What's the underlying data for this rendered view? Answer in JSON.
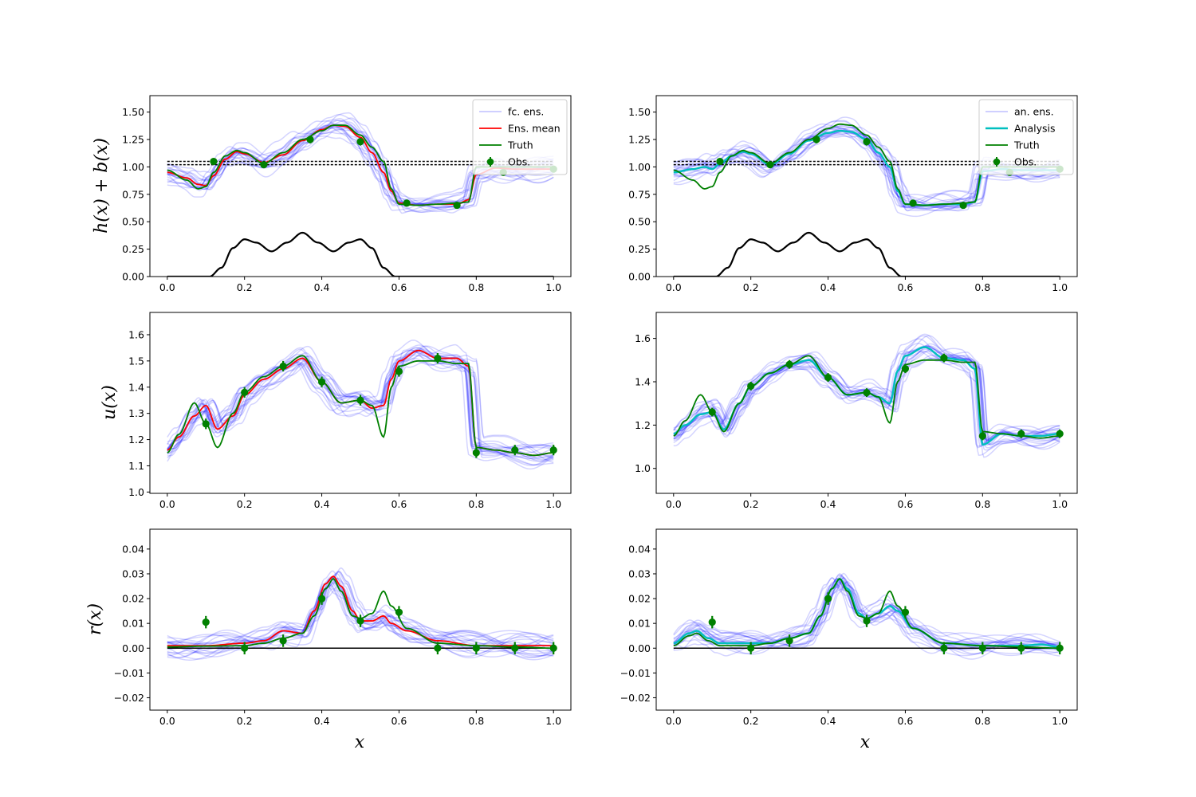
{
  "figure": {
    "row_labels": [
      "h(x) + b(x)",
      "u(x)",
      "r(x)"
    ],
    "x_label": "x"
  },
  "colors": {
    "ensemble": "#0000ff",
    "ens_mean": "#ff0000",
    "analysis": "#00bfbf",
    "truth": "#008000",
    "obs": "#008000",
    "bed": "#000000"
  },
  "chart_data": [
    {
      "type": "line",
      "panel": "top-left",
      "ylabel": "h(x) + b(x)",
      "xlabel": "",
      "xlim": [
        -0.045,
        1.045
      ],
      "ylim": [
        0.0,
        1.65
      ],
      "xticks": [
        0.0,
        0.2,
        0.4,
        0.6,
        0.8,
        1.0
      ],
      "yticks": [
        0.0,
        0.25,
        0.5,
        0.75,
        1.0,
        1.25,
        1.5
      ],
      "legend": {
        "position": "top-right",
        "labels": [
          "fc. ens.",
          "Ens. mean",
          "Truth",
          "Obs."
        ]
      },
      "truth_x": [
        0,
        0.05,
        0.08,
        0.1,
        0.12,
        0.15,
        0.18,
        0.2,
        0.25,
        0.3,
        0.35,
        0.4,
        0.43,
        0.46,
        0.5,
        0.53,
        0.56,
        0.58,
        0.6,
        0.65,
        0.7,
        0.75,
        0.78,
        0.8,
        0.85,
        0.9,
        0.95,
        1.0
      ],
      "truth_y": [
        0.97,
        0.88,
        0.8,
        0.82,
        0.95,
        1.1,
        1.15,
        1.13,
        1.03,
        1.13,
        1.25,
        1.33,
        1.38,
        1.38,
        1.29,
        1.18,
        1.05,
        0.8,
        0.66,
        0.65,
        0.66,
        0.67,
        0.68,
        1.0,
        1.0,
        1.0,
        1.0,
        1.0
      ],
      "mean_x": [
        0,
        0.05,
        0.08,
        0.1,
        0.12,
        0.15,
        0.18,
        0.2,
        0.25,
        0.3,
        0.35,
        0.4,
        0.43,
        0.46,
        0.5,
        0.53,
        0.56,
        0.58,
        0.6,
        0.65,
        0.7,
        0.75,
        0.78,
        0.8,
        0.85,
        0.9,
        0.95,
        1.0
      ],
      "mean_y": [
        0.95,
        0.9,
        0.84,
        0.83,
        0.92,
        1.07,
        1.14,
        1.12,
        1.04,
        1.11,
        1.24,
        1.34,
        1.38,
        1.37,
        1.27,
        1.13,
        0.95,
        0.78,
        0.67,
        0.65,
        0.66,
        0.66,
        0.7,
        0.93,
        0.99,
        0.98,
        0.98,
        0.98
      ],
      "obs": {
        "x": [
          0.12,
          0.25,
          0.37,
          0.5,
          0.62,
          0.75,
          0.87,
          1.0
        ],
        "y": [
          1.05,
          1.02,
          1.25,
          1.23,
          0.67,
          0.65,
          0.95,
          0.98
        ],
        "err": [
          0.03,
          0.03,
          0.035,
          0.035,
          0.03,
          0.03,
          0.03,
          0.03
        ]
      },
      "hlines": [
        1.02,
        1.05
      ],
      "bed": {
        "x": [
          0.11,
          0.14,
          0.17,
          0.2,
          0.23,
          0.27,
          0.31,
          0.35,
          0.39,
          0.43,
          0.47,
          0.5,
          0.53,
          0.56,
          0.59
        ],
        "y": [
          0.0,
          0.08,
          0.26,
          0.34,
          0.31,
          0.23,
          0.31,
          0.4,
          0.31,
          0.23,
          0.31,
          0.34,
          0.26,
          0.08,
          0.0
        ]
      }
    },
    {
      "type": "line",
      "panel": "top-right",
      "ylabel": "",
      "xlabel": "",
      "xlim": [
        -0.045,
        1.045
      ],
      "ylim": [
        0.0,
        1.65
      ],
      "xticks": [
        0.0,
        0.2,
        0.4,
        0.6,
        0.8,
        1.0
      ],
      "yticks": [
        0.0,
        0.25,
        0.5,
        0.75,
        1.0,
        1.25,
        1.5
      ],
      "legend": {
        "position": "top-right",
        "labels": [
          "an. ens.",
          "Analysis",
          "Truth",
          "Obs."
        ]
      },
      "truth_x": [
        0,
        0.05,
        0.08,
        0.1,
        0.12,
        0.15,
        0.18,
        0.2,
        0.25,
        0.3,
        0.35,
        0.4,
        0.43,
        0.46,
        0.5,
        0.53,
        0.56,
        0.58,
        0.6,
        0.65,
        0.7,
        0.75,
        0.78,
        0.8,
        0.85,
        0.9,
        0.95,
        1.0
      ],
      "truth_y": [
        0.97,
        0.88,
        0.8,
        0.82,
        0.95,
        1.1,
        1.15,
        1.13,
        1.03,
        1.13,
        1.25,
        1.35,
        1.39,
        1.38,
        1.29,
        1.18,
        1.05,
        0.8,
        0.66,
        0.65,
        0.66,
        0.67,
        0.68,
        1.0,
        1.0,
        1.0,
        1.0,
        1.0
      ],
      "mean_x": [
        0,
        0.05,
        0.08,
        0.1,
        0.12,
        0.15,
        0.18,
        0.2,
        0.25,
        0.3,
        0.35,
        0.4,
        0.43,
        0.46,
        0.5,
        0.53,
        0.56,
        0.58,
        0.6,
        0.65,
        0.7,
        0.75,
        0.78,
        0.8,
        0.85,
        0.9,
        0.95,
        1.0
      ],
      "mean_y": [
        0.95,
        0.98,
        1.0,
        0.98,
        1.03,
        1.1,
        1.14,
        1.12,
        1.02,
        1.12,
        1.24,
        1.31,
        1.33,
        1.32,
        1.25,
        1.13,
        1.0,
        0.78,
        0.66,
        0.65,
        0.66,
        0.66,
        0.68,
        0.96,
        0.98,
        0.97,
        0.97,
        0.97
      ],
      "obs": {
        "x": [
          0.12,
          0.25,
          0.37,
          0.5,
          0.62,
          0.75,
          0.87,
          1.0
        ],
        "y": [
          1.05,
          1.02,
          1.25,
          1.23,
          0.67,
          0.65,
          0.95,
          0.98
        ],
        "err": [
          0.03,
          0.03,
          0.035,
          0.035,
          0.03,
          0.03,
          0.03,
          0.03
        ]
      },
      "hlines": [
        1.02,
        1.05
      ],
      "bed": {
        "x": [
          0.11,
          0.14,
          0.17,
          0.2,
          0.23,
          0.27,
          0.31,
          0.35,
          0.39,
          0.43,
          0.47,
          0.5,
          0.53,
          0.56,
          0.59
        ],
        "y": [
          0.0,
          0.08,
          0.26,
          0.34,
          0.31,
          0.23,
          0.31,
          0.4,
          0.31,
          0.23,
          0.31,
          0.34,
          0.26,
          0.08,
          0.0
        ]
      }
    },
    {
      "type": "line",
      "panel": "middle-left",
      "ylabel": "u(x)",
      "xlabel": "",
      "xlim": [
        -0.045,
        1.045
      ],
      "ylim": [
        0.995,
        1.685
      ],
      "xticks": [
        0.0,
        0.2,
        0.4,
        0.6,
        0.8,
        1.0
      ],
      "yticks": [
        1.0,
        1.1,
        1.2,
        1.3,
        1.4,
        1.5,
        1.6
      ],
      "truth_x": [
        0,
        0.03,
        0.07,
        0.1,
        0.13,
        0.17,
        0.2,
        0.25,
        0.3,
        0.35,
        0.4,
        0.45,
        0.5,
        0.53,
        0.56,
        0.58,
        0.6,
        0.65,
        0.7,
        0.75,
        0.78,
        0.8,
        0.85,
        0.9,
        0.95,
        1.0
      ],
      "truth_y": [
        1.15,
        1.22,
        1.34,
        1.26,
        1.17,
        1.3,
        1.38,
        1.44,
        1.48,
        1.52,
        1.42,
        1.34,
        1.35,
        1.33,
        1.21,
        1.4,
        1.48,
        1.5,
        1.5,
        1.49,
        1.49,
        1.17,
        1.16,
        1.15,
        1.14,
        1.15
      ],
      "mean_x": [
        0,
        0.03,
        0.07,
        0.1,
        0.13,
        0.17,
        0.2,
        0.25,
        0.3,
        0.35,
        0.4,
        0.45,
        0.5,
        0.53,
        0.56,
        0.58,
        0.6,
        0.65,
        0.7,
        0.75,
        0.78,
        0.8,
        0.85,
        0.9,
        0.95,
        1.0
      ],
      "mean_y": [
        1.16,
        1.21,
        1.29,
        1.33,
        1.24,
        1.29,
        1.37,
        1.43,
        1.47,
        1.51,
        1.42,
        1.34,
        1.35,
        1.32,
        1.33,
        1.43,
        1.5,
        1.54,
        1.51,
        1.51,
        1.48,
        1.17,
        1.16,
        1.15,
        1.14,
        1.15
      ],
      "obs": {
        "x": [
          0.1,
          0.2,
          0.3,
          0.4,
          0.5,
          0.6,
          0.7,
          0.8,
          0.9,
          1.0
        ],
        "y": [
          1.26,
          1.38,
          1.48,
          1.42,
          1.35,
          1.46,
          1.51,
          1.15,
          1.16,
          1.16
        ],
        "err": [
          0.02,
          0.02,
          0.02,
          0.02,
          0.02,
          0.02,
          0.02,
          0.02,
          0.02,
          0.02
        ]
      }
    },
    {
      "type": "line",
      "panel": "middle-right",
      "ylabel": "",
      "xlabel": "",
      "xlim": [
        -0.045,
        1.045
      ],
      "ylim": [
        0.885,
        1.72
      ],
      "xticks": [
        0.0,
        0.2,
        0.4,
        0.6,
        0.8,
        1.0
      ],
      "yticks": [
        1.0,
        1.2,
        1.4,
        1.6
      ],
      "truth_x": [
        0,
        0.03,
        0.07,
        0.1,
        0.13,
        0.17,
        0.2,
        0.25,
        0.3,
        0.35,
        0.4,
        0.45,
        0.5,
        0.53,
        0.56,
        0.58,
        0.6,
        0.65,
        0.7,
        0.75,
        0.78,
        0.8,
        0.85,
        0.9,
        0.95,
        1.0
      ],
      "truth_y": [
        1.15,
        1.22,
        1.34,
        1.26,
        1.17,
        1.3,
        1.38,
        1.44,
        1.48,
        1.52,
        1.42,
        1.34,
        1.35,
        1.33,
        1.21,
        1.4,
        1.48,
        1.5,
        1.5,
        1.49,
        1.49,
        1.17,
        1.16,
        1.15,
        1.14,
        1.15
      ],
      "mean_x": [
        0,
        0.03,
        0.07,
        0.1,
        0.13,
        0.17,
        0.2,
        0.25,
        0.3,
        0.35,
        0.4,
        0.45,
        0.5,
        0.53,
        0.56,
        0.58,
        0.6,
        0.65,
        0.7,
        0.75,
        0.78,
        0.8,
        0.85,
        0.9,
        0.95,
        1.0
      ],
      "mean_y": [
        1.16,
        1.2,
        1.25,
        1.26,
        1.18,
        1.3,
        1.38,
        1.44,
        1.48,
        1.5,
        1.42,
        1.34,
        1.35,
        1.33,
        1.3,
        1.45,
        1.52,
        1.56,
        1.51,
        1.5,
        1.46,
        1.11,
        1.16,
        1.15,
        1.15,
        1.16
      ],
      "obs": {
        "x": [
          0.1,
          0.2,
          0.3,
          0.4,
          0.5,
          0.6,
          0.7,
          0.8,
          0.9,
          1.0
        ],
        "y": [
          1.26,
          1.38,
          1.48,
          1.42,
          1.35,
          1.46,
          1.51,
          1.15,
          1.16,
          1.16
        ],
        "err": [
          0.02,
          0.02,
          0.02,
          0.02,
          0.02,
          0.02,
          0.02,
          0.02,
          0.02,
          0.02
        ]
      }
    },
    {
      "type": "line",
      "panel": "bottom-left",
      "ylabel": "r(x)",
      "xlabel": "x",
      "xlim": [
        -0.045,
        1.045
      ],
      "ylim": [
        -0.025,
        0.048
      ],
      "xticks": [
        0.0,
        0.2,
        0.4,
        0.6,
        0.8,
        1.0
      ],
      "yticks": [
        -0.02,
        -0.01,
        0.0,
        0.01,
        0.02,
        0.03,
        0.04
      ],
      "truth_x": [
        0,
        0.1,
        0.2,
        0.25,
        0.3,
        0.35,
        0.38,
        0.41,
        0.43,
        0.45,
        0.48,
        0.5,
        0.53,
        0.56,
        0.58,
        0.62,
        0.7,
        0.8,
        0.9,
        1.0
      ],
      "truth_y": [
        0.0005,
        0.0008,
        0.001,
        0.002,
        0.004,
        0.006,
        0.013,
        0.024,
        0.028,
        0.023,
        0.013,
        0.012,
        0.014,
        0.023,
        0.017,
        0.008,
        0.002,
        0.001,
        0.0005,
        0.0
      ],
      "mean_x": [
        0,
        0.1,
        0.2,
        0.25,
        0.3,
        0.35,
        0.38,
        0.41,
        0.43,
        0.45,
        0.48,
        0.5,
        0.53,
        0.56,
        0.58,
        0.62,
        0.7,
        0.8,
        0.9,
        1.0
      ],
      "mean_y": [
        0.001,
        0.001,
        0.002,
        0.003,
        0.007,
        0.006,
        0.015,
        0.026,
        0.029,
        0.025,
        0.015,
        0.011,
        0.011,
        0.013,
        0.01,
        0.007,
        0.003,
        0.001,
        0.001,
        0.001
      ],
      "obs": {
        "x": [
          0.1,
          0.2,
          0.3,
          0.4,
          0.5,
          0.6,
          0.7,
          0.8,
          0.9,
          1.0
        ],
        "y": [
          0.0105,
          0.0,
          0.003,
          0.02,
          0.011,
          0.0145,
          0.0,
          0.0,
          0.0,
          0.0
        ],
        "err": [
          0.0025,
          0.0025,
          0.0025,
          0.0025,
          0.0025,
          0.0025,
          0.0025,
          0.0025,
          0.0025,
          0.0025
        ]
      },
      "hlines": [
        0.0
      ]
    },
    {
      "type": "line",
      "panel": "bottom-right",
      "ylabel": "",
      "xlabel": "x",
      "xlim": [
        -0.045,
        1.045
      ],
      "ylim": [
        -0.025,
        0.048
      ],
      "xticks": [
        0.0,
        0.2,
        0.4,
        0.6,
        0.8,
        1.0
      ],
      "yticks": [
        -0.02,
        -0.01,
        0.0,
        0.01,
        0.02,
        0.03,
        0.04
      ],
      "truth_x": [
        0,
        0.04,
        0.06,
        0.09,
        0.12,
        0.2,
        0.25,
        0.3,
        0.35,
        0.38,
        0.41,
        0.43,
        0.45,
        0.48,
        0.5,
        0.53,
        0.56,
        0.58,
        0.62,
        0.7,
        0.8,
        0.9,
        1.0
      ],
      "truth_y": [
        0.001,
        0.005,
        0.006,
        0.003,
        0.001,
        0.001,
        0.002,
        0.004,
        0.006,
        0.013,
        0.024,
        0.028,
        0.023,
        0.013,
        0.012,
        0.014,
        0.023,
        0.017,
        0.008,
        0.002,
        0.001,
        0.0005,
        0.0
      ],
      "mean_x": [
        0,
        0.04,
        0.06,
        0.09,
        0.12,
        0.2,
        0.25,
        0.3,
        0.35,
        0.38,
        0.41,
        0.43,
        0.45,
        0.48,
        0.5,
        0.53,
        0.56,
        0.58,
        0.62,
        0.7,
        0.8,
        0.9,
        0.95,
        1.0
      ],
      "mean_y": [
        0.002,
        0.006,
        0.007,
        0.004,
        0.002,
        0.002,
        0.002,
        0.004,
        0.006,
        0.013,
        0.024,
        0.028,
        0.024,
        0.014,
        0.012,
        0.014,
        0.017,
        0.015,
        0.008,
        0.002,
        0.001,
        0.001,
        0.0015,
        0.0005
      ],
      "obs": {
        "x": [
          0.1,
          0.2,
          0.3,
          0.4,
          0.5,
          0.6,
          0.7,
          0.8,
          0.9,
          1.0
        ],
        "y": [
          0.0105,
          0.0,
          0.003,
          0.02,
          0.011,
          0.0145,
          0.0,
          0.0,
          0.0,
          0.0
        ],
        "err": [
          0.0025,
          0.0025,
          0.0025,
          0.0025,
          0.0025,
          0.0025,
          0.0025,
          0.0025,
          0.0025,
          0.0025
        ]
      },
      "hlines": [
        0.0
      ]
    }
  ]
}
